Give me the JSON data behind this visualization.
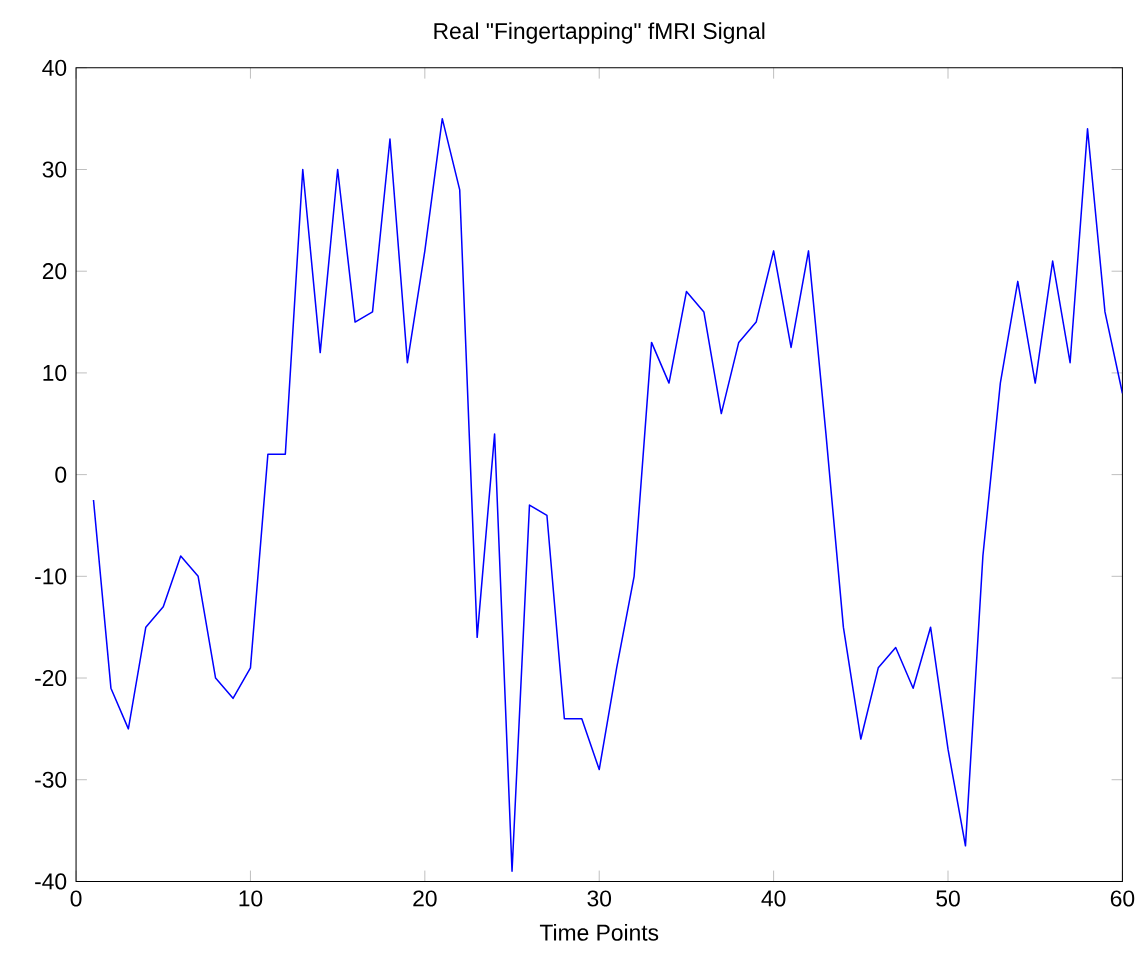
{
  "chart_data": {
    "type": "line",
    "title": "Real \"Fingertapping\" fMRI Signal",
    "xlabel": "Time Points",
    "x": [
      1,
      2,
      3,
      4,
      5,
      6,
      7,
      8,
      9,
      10,
      11,
      12,
      13,
      14,
      15,
      16,
      17,
      18,
      19,
      20,
      21,
      22,
      23,
      24,
      25,
      26,
      27,
      28,
      29,
      30,
      31,
      32,
      33,
      34,
      35,
      36,
      37,
      38,
      39,
      40,
      41,
      42,
      43,
      44,
      45,
      46,
      47,
      48,
      49,
      50,
      51,
      52,
      53,
      54,
      55,
      56,
      57,
      58,
      59,
      60
    ],
    "series": [
      {
        "color": "#0000ff",
        "values": [
          -2.5,
          -21,
          -25,
          -15,
          -13,
          -8,
          -10,
          -20,
          -22,
          -19,
          2,
          2,
          30,
          12,
          30,
          15,
          16,
          33,
          11,
          22,
          35,
          28,
          -16,
          4,
          -39,
          -3,
          -4,
          -24,
          -24,
          -29,
          -19,
          -10,
          13,
          9,
          18,
          16,
          6,
          13,
          15,
          22,
          12.5,
          22,
          4,
          -15,
          -26,
          -19,
          -17,
          -21,
          -15,
          -27,
          -36.5,
          -8,
          9,
          19,
          9,
          21,
          11,
          34,
          16,
          8
        ]
      }
    ],
    "xlim": [
      0,
      60
    ],
    "ylim": [
      -40,
      40
    ],
    "xticks": [
      0,
      10,
      20,
      30,
      40,
      50,
      60
    ],
    "yticks": [
      -40,
      -30,
      -20,
      -10,
      0,
      10,
      20,
      30,
      40
    ],
    "grid": false,
    "marker": "none",
    "line_style": "solid"
  }
}
